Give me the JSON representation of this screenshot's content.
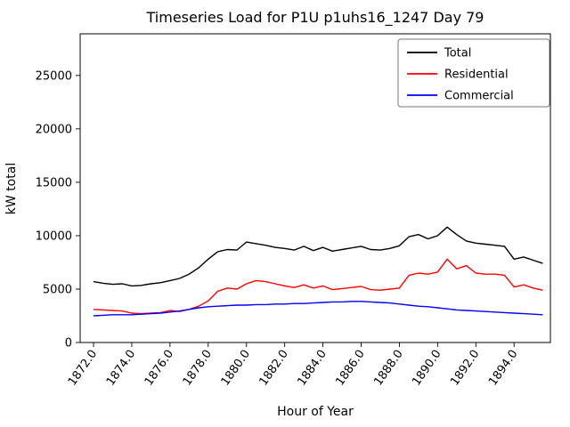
{
  "figure": {
    "title": "Timeseries Load for P1U p1uhs16_1247  Day 79",
    "xlabel": "Hour of Year",
    "ylabel": "kW total"
  },
  "chart_data": {
    "type": "line",
    "title": "Timeseries Load for P1U p1uhs16_1247  Day 79",
    "xlabel": "Hour of Year",
    "ylabel": "kW total",
    "grid": false,
    "legend_position": "upper right",
    "xlim": [
      1871.3,
      1895.9
    ],
    "ylim": [
      0,
      28900
    ],
    "x_ticks": [
      1872,
      1874,
      1876,
      1878,
      1880,
      1882,
      1884,
      1886,
      1888,
      1890,
      1892,
      1894
    ],
    "x_tick_labels": [
      "1872.0",
      "1874.0",
      "1876.0",
      "1878.0",
      "1880.0",
      "1882.0",
      "1884.0",
      "1886.0",
      "1888.0",
      "1890.0",
      "1892.0",
      "1894.0"
    ],
    "y_ticks": [
      0,
      5000,
      10000,
      15000,
      20000,
      25000
    ],
    "y_tick_labels": [
      "0",
      "5000",
      "10000",
      "15000",
      "20000",
      "25000"
    ],
    "x": [
      1872.0,
      1872.5,
      1873.0,
      1873.5,
      1874.0,
      1874.5,
      1875.0,
      1875.5,
      1876.0,
      1876.5,
      1877.0,
      1877.5,
      1878.0,
      1878.5,
      1879.0,
      1879.5,
      1880.0,
      1880.5,
      1881.0,
      1881.5,
      1882.0,
      1882.5,
      1883.0,
      1883.5,
      1884.0,
      1884.5,
      1885.0,
      1885.5,
      1886.0,
      1886.5,
      1887.0,
      1887.5,
      1888.0,
      1888.5,
      1889.0,
      1889.5,
      1890.0,
      1890.5,
      1891.0,
      1891.5,
      1892.0,
      1892.5,
      1893.0,
      1893.5,
      1894.0,
      1894.5,
      1895.0,
      1895.5
    ],
    "series": [
      {
        "name": "Total",
        "color": "#000000",
        "values": [
          5700,
          5550,
          5450,
          5500,
          5300,
          5350,
          5500,
          5600,
          5800,
          6000,
          6400,
          7000,
          7800,
          8500,
          8700,
          8650,
          9400,
          9250,
          9100,
          8900,
          8800,
          8650,
          9000,
          8600,
          8900,
          8550,
          8700,
          8850,
          9000,
          8700,
          8650,
          8800,
          9050,
          9900,
          10100,
          9700,
          10000,
          10800,
          10100,
          9500,
          9300,
          9200,
          9100,
          9000,
          7800,
          8000,
          7700,
          7400
        ]
      },
      {
        "name": "Residential",
        "color": "#ff0000",
        "values": [
          3100,
          3050,
          3000,
          2950,
          2750,
          2700,
          2750,
          2800,
          3000,
          2900,
          3100,
          3400,
          3900,
          4800,
          5100,
          5000,
          5500,
          5800,
          5700,
          5500,
          5300,
          5150,
          5400,
          5100,
          5300,
          4950,
          5050,
          5150,
          5250,
          4950,
          4900,
          5000,
          5100,
          6300,
          6500,
          6400,
          6600,
          7800,
          6900,
          7200,
          6500,
          6400,
          6400,
          6300,
          5200,
          5400,
          5100,
          4900
        ]
      },
      {
        "name": "Commercial",
        "color": "#0000ff",
        "values": [
          2500,
          2550,
          2600,
          2600,
          2600,
          2650,
          2700,
          2750,
          2850,
          2950,
          3100,
          3250,
          3350,
          3400,
          3450,
          3500,
          3500,
          3550,
          3550,
          3600,
          3600,
          3650,
          3650,
          3700,
          3750,
          3800,
          3800,
          3850,
          3850,
          3800,
          3750,
          3700,
          3600,
          3500,
          3400,
          3350,
          3250,
          3150,
          3050,
          3000,
          2950,
          2900,
          2850,
          2800,
          2750,
          2700,
          2650,
          2600
        ]
      }
    ],
    "legend_entries": [
      "Total",
      "Residential",
      "Commercial"
    ]
  }
}
